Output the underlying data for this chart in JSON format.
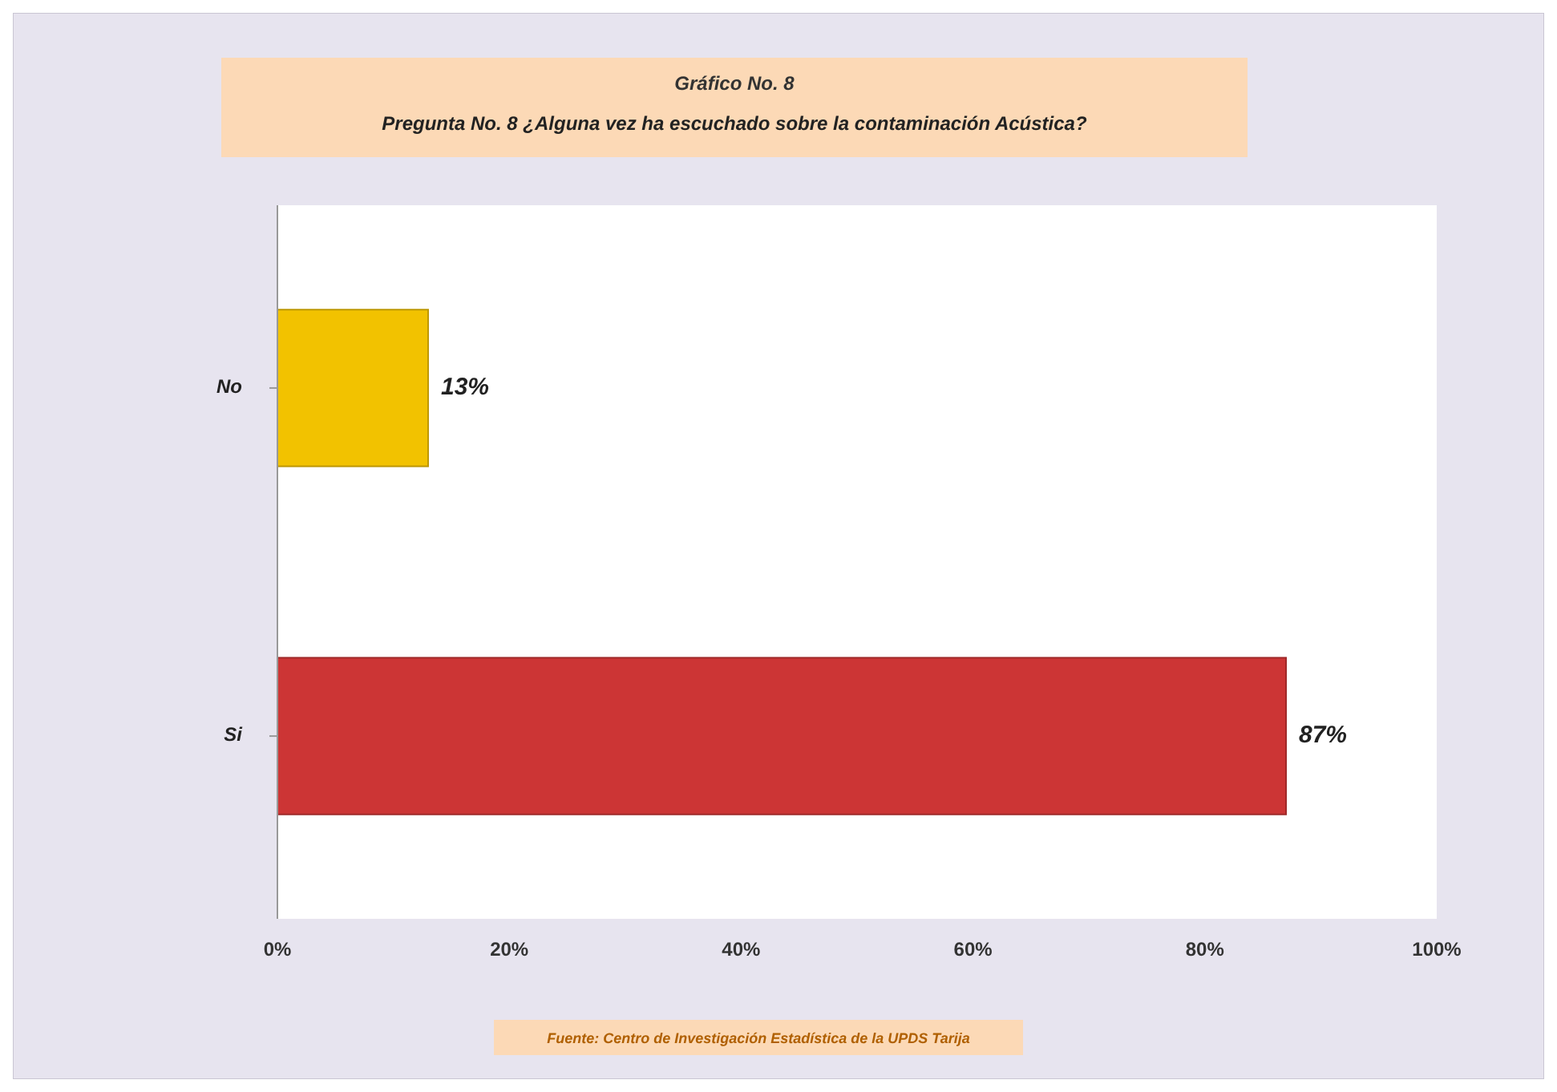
{
  "chart_data": {
    "type": "bar",
    "orientation": "horizontal",
    "title": "Gráfico No. 8",
    "subtitle": "Pregunta No. 8 ¿Alguna vez ha escuchado sobre la contaminación Acústica?",
    "categories": [
      "No",
      "Si"
    ],
    "values": [
      13,
      87
    ],
    "colors": [
      "#f2c200",
      "#cc3535"
    ],
    "value_labels": [
      "13%",
      "87%"
    ],
    "xlim": [
      0,
      100
    ],
    "xticks": [
      {
        "value": 0,
        "label": "0%"
      },
      {
        "value": 20,
        "label": "20%"
      },
      {
        "value": 40,
        "label": "40%"
      },
      {
        "value": 60,
        "label": "60%"
      },
      {
        "value": 80,
        "label": "80%"
      },
      {
        "value": 100,
        "label": "100%"
      }
    ],
    "grid": false,
    "annotations": [
      "Fuente: Centro de Investigación Estadística de la UPDS Tarija"
    ]
  }
}
